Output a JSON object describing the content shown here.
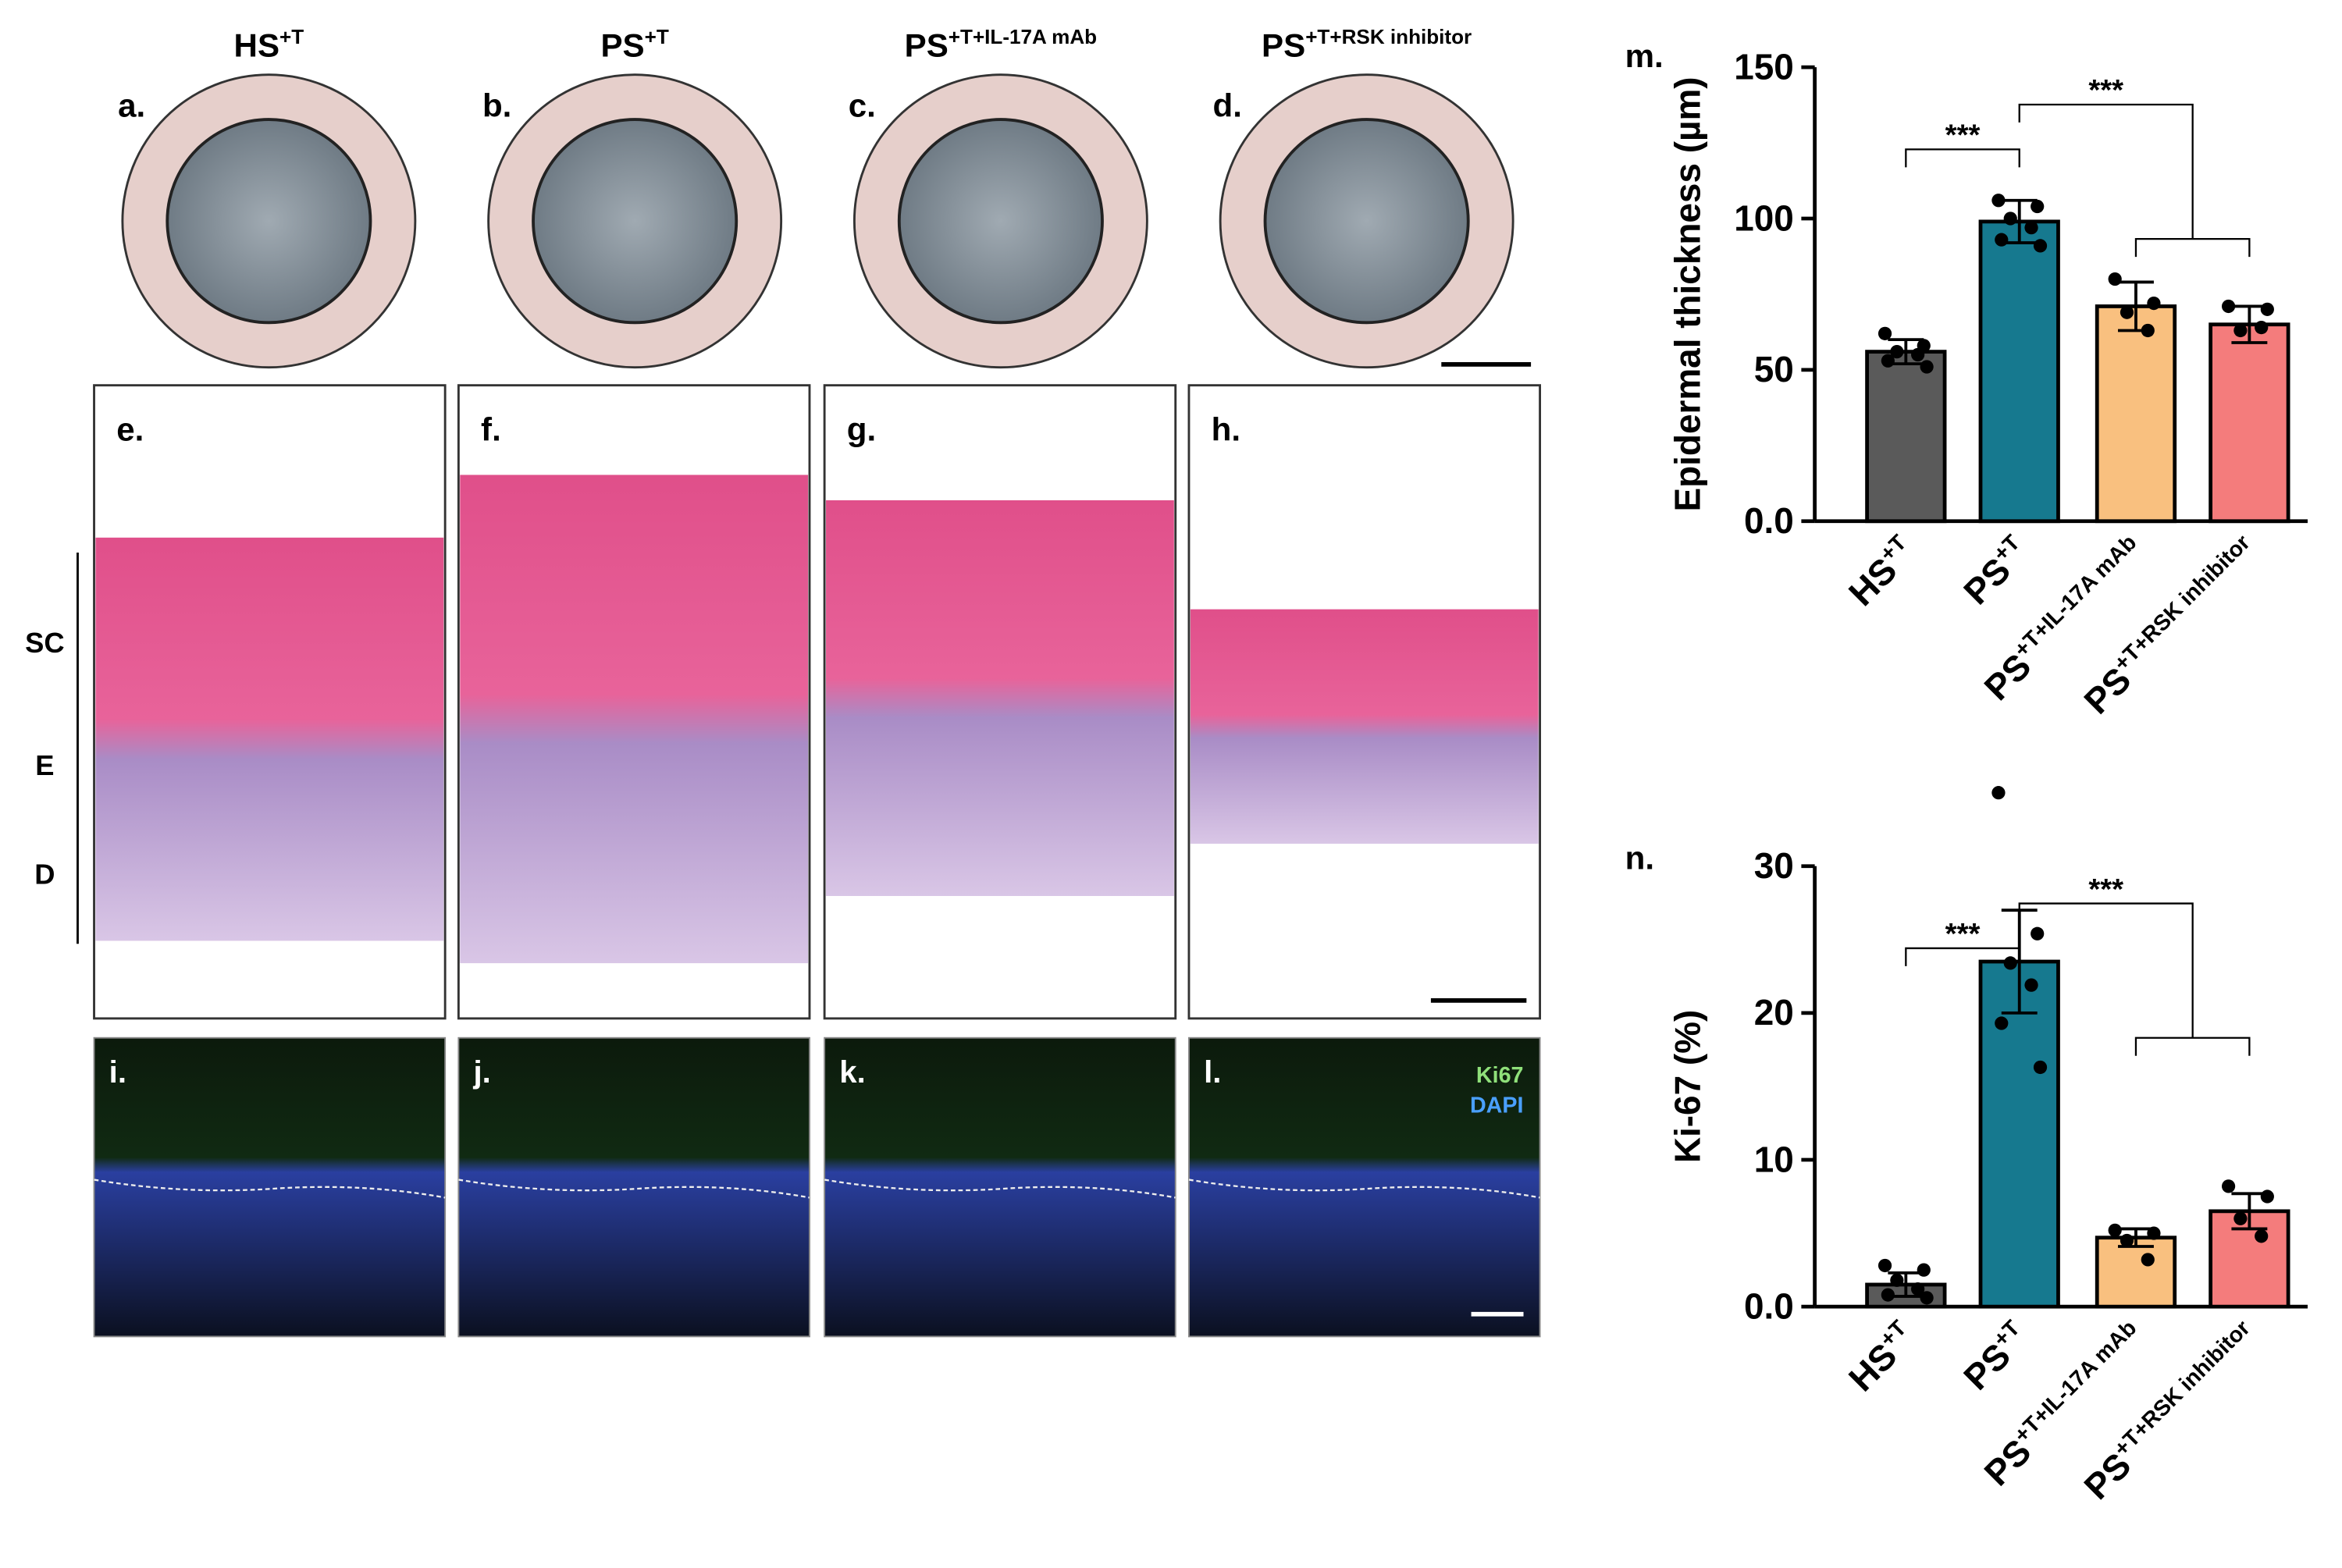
{
  "columns": [
    {
      "base": "HS",
      "sup": "+T"
    },
    {
      "base": "PS",
      "sup": "+T"
    },
    {
      "base": "PS",
      "sup": "+T+IL-17A mAb"
    },
    {
      "base": "PS",
      "sup": "+T+RSK  inhibitor"
    }
  ],
  "panel_labels": [
    "a.",
    "b.",
    "c.",
    "d.",
    "e.",
    "f.",
    "g.",
    "h.",
    "i.",
    "j.",
    "k.",
    "l."
  ],
  "layer_labels": [
    "SC",
    "E",
    "D"
  ],
  "stain_labels": [
    "Ki67",
    "DAPI"
  ],
  "chart_data": [
    {
      "type": "bar",
      "panel_label": "m.",
      "ylabel": "Epidermal thickness (µm)",
      "categories": [
        "HS",
        "PS",
        "PS",
        "PS"
      ],
      "category_sups": [
        "+T",
        "+T",
        "+T+IL-17A  mAb",
        "+T+RSK  inhibitor"
      ],
      "values": [
        56,
        99,
        71,
        65
      ],
      "errors": [
        4,
        7,
        8,
        6
      ],
      "points": [
        [
          62,
          58,
          56,
          55,
          53,
          51
        ],
        [
          106,
          104,
          100,
          97,
          93,
          91
        ],
        [
          80,
          72,
          69,
          63
        ],
        [
          71,
          70,
          63,
          64
        ]
      ],
      "colors": [
        "#5a5a5a",
        "#16798f",
        "#f9c07f",
        "#f47c7c"
      ],
      "annotations": [
        "***",
        "***"
      ],
      "ylim": [
        0,
        150
      ],
      "yticks": [
        {
          "value": 0,
          "label": "0.0"
        },
        50,
        100,
        150
      ]
    },
    {
      "type": "bar",
      "panel_label": "n.",
      "ylabel": "Ki-67 (%)",
      "categories": [
        "HS",
        "PS",
        "PS",
        "PS"
      ],
      "category_sups": [
        "+T",
        "+T",
        "+T+IL-17A  mAb",
        "+T+RSK  inhibitor"
      ],
      "values": [
        1.5,
        23.5,
        4.7,
        6.5
      ],
      "errors": [
        0.8,
        3.5,
        0.6,
        1.2
      ],
      "points": [
        [
          2.8,
          2.5,
          1.8,
          1.2,
          0.8,
          0.6
        ],
        [
          35,
          25.4,
          23.4,
          21.9,
          19.3,
          16.3
        ],
        [
          5.2,
          5.0,
          4.5,
          3.2
        ],
        [
          8.2,
          7.5,
          6.0,
          4.8
        ]
      ],
      "colors": [
        "#5a5a5a",
        "#16798f",
        "#f9c07f",
        "#f47c7c"
      ],
      "annotations": [
        "***",
        "***"
      ],
      "ylim": [
        0,
        30
      ],
      "yticks": [
        {
          "value": 0,
          "label": "0.0"
        },
        10,
        20,
        30
      ]
    }
  ]
}
